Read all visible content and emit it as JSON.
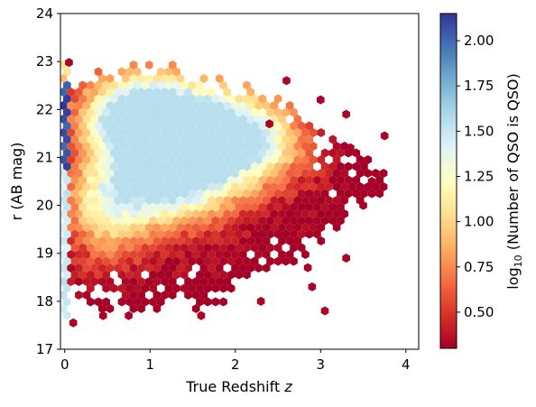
{
  "chart_data": {
    "type": "heatmap",
    "subtype": "hexbin",
    "title": "",
    "xlabel": "True Redshift",
    "xlabel_var": "z",
    "ylabel": "r (AB mag)",
    "xlim": [
      -0.05,
      4.15
    ],
    "ylim": [
      17,
      24
    ],
    "x_ticks": [
      0,
      1,
      2,
      3,
      4
    ],
    "x_tick_labels": [
      "0",
      "1",
      "2",
      "3",
      "4"
    ],
    "y_ticks": [
      17,
      18,
      19,
      20,
      21,
      22,
      23,
      24
    ],
    "y_tick_labels": [
      "17",
      "18",
      "19",
      "20",
      "21",
      "22",
      "23",
      "24"
    ],
    "grid": false,
    "colorbar": {
      "label_prefix": "log",
      "label_sub": "10",
      "label_rest": " (Number of QSO is QSO)",
      "colormap": "RdYlBu",
      "range": [
        0.3,
        2.15
      ],
      "ticks": [
        0.5,
        0.75,
        1.0,
        1.25,
        1.5,
        1.75,
        2.0
      ],
      "tick_labels": [
        "0.50",
        "0.75",
        "1.00",
        "1.25",
        "1.50",
        "1.75",
        "2.00"
      ]
    },
    "density_components": [
      {
        "z": 0.85,
        "r": 21.9,
        "sz": 0.45,
        "sr": 0.55,
        "peak": 1.45
      },
      {
        "z": 1.55,
        "r": 21.5,
        "sz": 0.55,
        "sr": 0.75,
        "peak": 1.3
      },
      {
        "z": 1.2,
        "r": 20.4,
        "sz": 0.5,
        "sr": 0.6,
        "peak": 1.05
      },
      {
        "z": 2.2,
        "r": 21.3,
        "sz": 0.45,
        "sr": 0.6,
        "peak": 0.8
      },
      {
        "z": 0.5,
        "r": 20.0,
        "sz": 0.35,
        "sr": 0.8,
        "peak": 0.75
      }
    ],
    "low_redshift_column": {
      "z_range": [
        0.0,
        0.03
      ],
      "high_value": 2.15,
      "high_r_range": [
        20.8,
        22.6
      ],
      "mid_value": 1.55,
      "mid_r_range": [
        17.6,
        20.8
      ]
    },
    "sparse_outliers": [
      {
        "z": 3.35,
        "r": 21.2
      },
      {
        "z": 3.6,
        "r": 20.5
      },
      {
        "z": 3.75,
        "r": 21.45
      },
      {
        "z": 3.5,
        "r": 20.0
      },
      {
        "z": 2.85,
        "r": 18.7
      },
      {
        "z": 3.3,
        "r": 18.9
      },
      {
        "z": 2.9,
        "r": 18.3
      },
      {
        "z": 3.05,
        "r": 17.8
      },
      {
        "z": 2.3,
        "r": 18.0
      },
      {
        "z": 1.6,
        "r": 17.7
      },
      {
        "z": 0.1,
        "r": 17.55
      },
      {
        "z": 0.45,
        "r": 17.7
      },
      {
        "z": 0.75,
        "r": 17.7
      },
      {
        "z": 2.6,
        "r": 22.6
      },
      {
        "z": 3.0,
        "r": 22.2
      },
      {
        "z": 3.3,
        "r": 21.9
      },
      {
        "z": 0.05,
        "r": 22.98
      },
      {
        "z": 2.4,
        "r": 21.7
      }
    ]
  }
}
